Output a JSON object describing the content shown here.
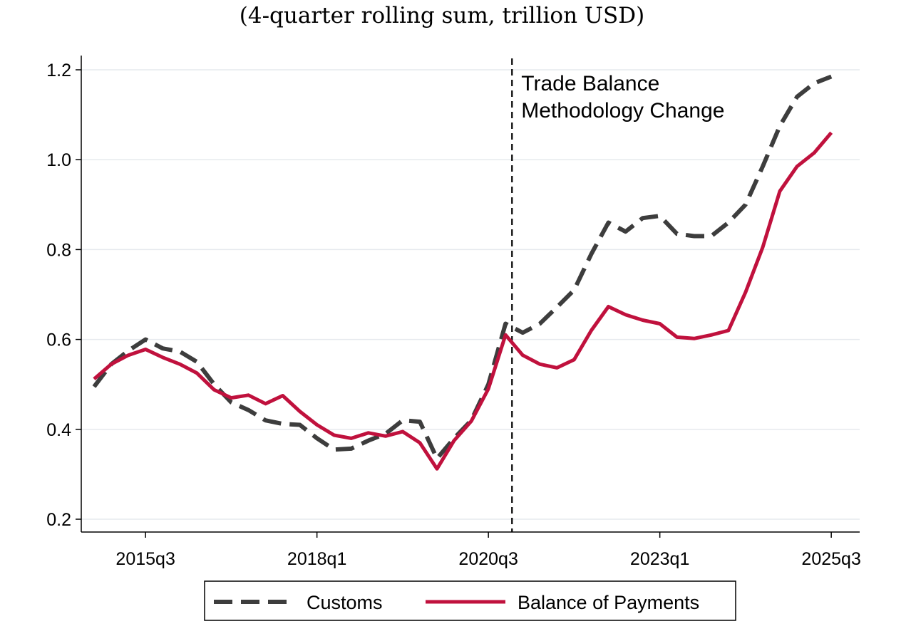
{
  "subtitle": "(4-quarter rolling sum, trillion USD)",
  "chart_data": {
    "type": "line",
    "title": "",
    "subtitle": "(4-quarter rolling sum, trillion USD)",
    "xlabel": "",
    "ylabel": "",
    "ylim": [
      0.2,
      1.2
    ],
    "yticks": [
      0.2,
      0.4,
      0.6,
      0.8,
      1.0,
      1.2
    ],
    "ytick_labels": [
      "0.2",
      "0.4",
      "0.6",
      "0.8",
      "1.0",
      "1.2"
    ],
    "x_start_quarter": "2014q4",
    "xtick_labels": [
      "2015q3",
      "2018q1",
      "2020q3",
      "2023q1",
      "2025q3"
    ],
    "xtick_index": [
      3,
      13,
      23,
      33,
      43
    ],
    "grid": true,
    "vline_index": 25,
    "annotation": [
      "Trade Balance",
      "Methodology Change"
    ],
    "legend_position": "bottom",
    "series": [
      {
        "name": "Customs",
        "style": "dashed",
        "color": "#3d3d3d",
        "values": [
          0.495,
          0.545,
          0.575,
          0.6,
          0.58,
          0.573,
          0.55,
          0.5,
          0.46,
          0.443,
          0.42,
          0.412,
          0.41,
          0.38,
          0.355,
          0.357,
          0.375,
          0.39,
          0.42,
          0.417,
          0.335,
          0.38,
          0.42,
          0.5,
          0.635,
          0.615,
          0.635,
          0.672,
          0.71,
          0.79,
          0.86,
          0.84,
          0.87,
          0.875,
          0.835,
          0.83,
          0.83,
          0.86,
          0.9,
          0.985,
          1.075,
          1.14,
          1.17,
          1.185
        ]
      },
      {
        "name": "Balance of Payments",
        "style": "solid",
        "color": "#c0113d",
        "values": [
          0.512,
          0.545,
          0.565,
          0.578,
          0.56,
          0.545,
          0.525,
          0.488,
          0.47,
          0.476,
          0.457,
          0.475,
          0.44,
          0.41,
          0.387,
          0.38,
          0.392,
          0.385,
          0.395,
          0.37,
          0.312,
          0.375,
          0.418,
          0.49,
          0.61,
          0.565,
          0.545,
          0.537,
          0.555,
          0.62,
          0.673,
          0.655,
          0.643,
          0.635,
          0.605,
          0.602,
          0.61,
          0.62,
          0.705,
          0.805,
          0.93,
          0.985,
          1.015,
          1.06
        ]
      }
    ]
  }
}
